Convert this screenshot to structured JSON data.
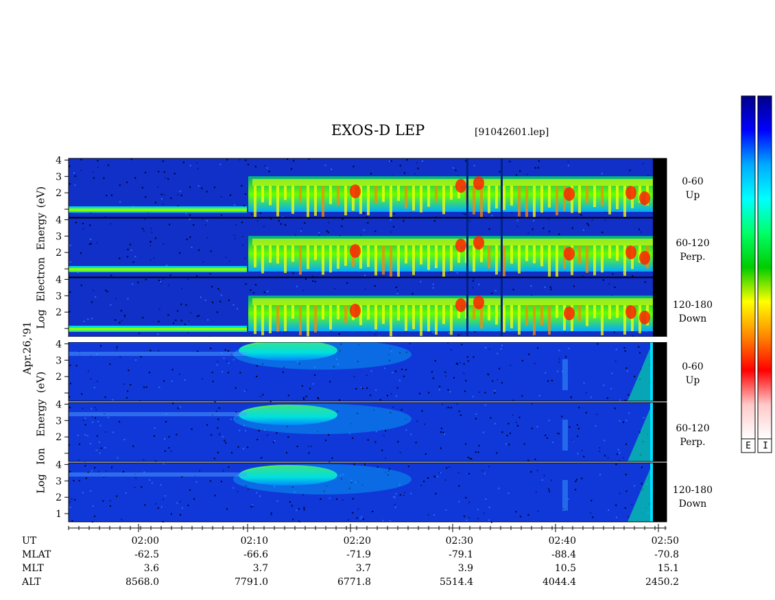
{
  "header": {
    "title": "EXOS-D LEP",
    "file": "[91042601.lep]"
  },
  "date_label": "Apr.26,'91",
  "groups": [
    {
      "name": "Electron",
      "ylabel_lines": [
        "Log",
        "Electron",
        "Energy",
        "(eV)"
      ]
    },
    {
      "name": "Ion",
      "ylabel_lines": [
        "Log",
        "Ion",
        "Energy",
        "(eV)"
      ]
    }
  ],
  "panels": [
    {
      "group": "Electron",
      "pitch_range": "0-60",
      "direction": "Up"
    },
    {
      "group": "Electron",
      "pitch_range": "60-120",
      "direction": "Perp."
    },
    {
      "group": "Electron",
      "pitch_range": "120-180",
      "direction": "Down"
    },
    {
      "group": "Ion",
      "pitch_range": "0-60",
      "direction": "Up"
    },
    {
      "group": "Ion",
      "pitch_range": "60-120",
      "direction": "Perp."
    },
    {
      "group": "Ion",
      "pitch_range": "120-180",
      "direction": "Down"
    }
  ],
  "colorbar": {
    "letters": [
      "E",
      "I"
    ],
    "colors": [
      "#00008a",
      "#0000ff",
      "#00aaff",
      "#00ffff",
      "#00ff66",
      "#00cc00",
      "#ffff00",
      "#ff8800",
      "#ff0000",
      "#ffc8c8",
      "#ffffff"
    ]
  },
  "axis_rows": [
    {
      "label": "UT",
      "values": [
        "02:00",
        "02:10",
        "02:20",
        "02:30",
        "02:40",
        "02:50"
      ]
    },
    {
      "label": "MLAT",
      "values": [
        "-62.5",
        "-66.6",
        "-71.9",
        "-79.1",
        "-88.4",
        "-70.8"
      ]
    },
    {
      "label": "MLT",
      "values": [
        "3.6",
        "3.7",
        "3.7",
        "3.9",
        "10.5",
        "15.1"
      ]
    },
    {
      "label": "ALT",
      "values": [
        "8568.0",
        "7791.0",
        "6771.8",
        "5514.4",
        "4044.4",
        "2450.2"
      ]
    }
  ],
  "chart_data": {
    "type": "heatmap",
    "title": "EXOS-D LEP",
    "xlabel": "UT",
    "ylabel": "Log Energy (eV)",
    "x_ticks": [
      "02:00",
      "02:10",
      "02:20",
      "02:30",
      "02:40",
      "02:50"
    ],
    "y_ticks": [
      1,
      2,
      3,
      4
    ],
    "ylim": [
      1,
      4
    ],
    "series": [
      {
        "name": "Electron 0-60 Up"
      },
      {
        "name": "Electron 60-120 Perp."
      },
      {
        "name": "Electron 120-180 Down"
      },
      {
        "name": "Ion 0-60 Up"
      },
      {
        "name": "Ion 60-120 Perp."
      },
      {
        "name": "Ion 120-180 Down"
      }
    ],
    "features": {
      "electron_onset_ut": "02:10",
      "ion_enhancement_ut": [
        "02:10",
        "02:20"
      ]
    }
  }
}
